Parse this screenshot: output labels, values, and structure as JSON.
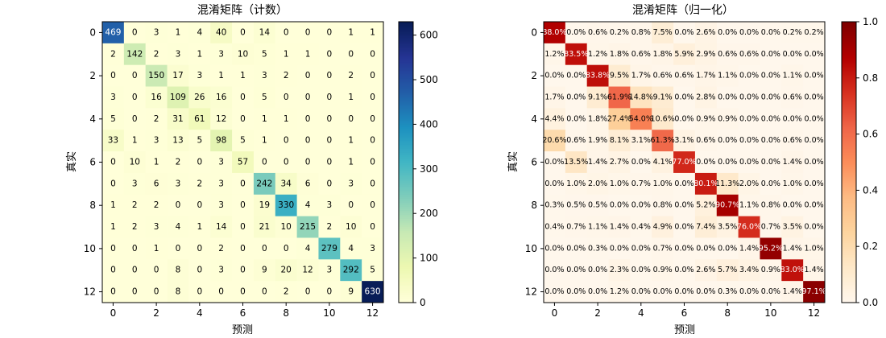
{
  "chart_data": [
    {
      "type": "heatmap",
      "title": "混淆矩阵（计数）",
      "xlabel": "预测",
      "ylabel": "真实",
      "labels": [
        0,
        1,
        2,
        3,
        4,
        5,
        6,
        7,
        8,
        9,
        10,
        11,
        12
      ],
      "tick_labels": [
        "0",
        "2",
        "4",
        "6",
        "8",
        "10",
        "12"
      ],
      "colormap": "YlGnBu",
      "vmin": 0,
      "vmax": 630,
      "colorbar_ticks": [
        "0",
        "100",
        "200",
        "300",
        "400",
        "500",
        "600"
      ],
      "matrix": [
        [
          469,
          0,
          3,
          1,
          4,
          40,
          0,
          14,
          0,
          0,
          0,
          1,
          1
        ],
        [
          2,
          142,
          2,
          3,
          1,
          3,
          10,
          5,
          1,
          1,
          0,
          0,
          0
        ],
        [
          0,
          0,
          150,
          17,
          3,
          1,
          1,
          3,
          2,
          0,
          0,
          2,
          0
        ],
        [
          3,
          0,
          16,
          109,
          26,
          16,
          0,
          5,
          0,
          0,
          0,
          1,
          0
        ],
        [
          5,
          0,
          2,
          31,
          61,
          12,
          0,
          1,
          1,
          0,
          0,
          0,
          0
        ],
        [
          33,
          1,
          3,
          13,
          5,
          98,
          5,
          1,
          0,
          0,
          0,
          1,
          0
        ],
        [
          0,
          10,
          1,
          2,
          0,
          3,
          57,
          0,
          0,
          0,
          0,
          1,
          0
        ],
        [
          0,
          3,
          6,
          3,
          2,
          3,
          0,
          242,
          34,
          6,
          0,
          3,
          0
        ],
        [
          1,
          2,
          2,
          0,
          0,
          3,
          0,
          19,
          330,
          4,
          3,
          0,
          0
        ],
        [
          1,
          2,
          3,
          4,
          1,
          14,
          0,
          21,
          10,
          215,
          2,
          10,
          0
        ],
        [
          0,
          0,
          1,
          0,
          0,
          2,
          0,
          0,
          0,
          4,
          279,
          4,
          3
        ],
        [
          0,
          0,
          0,
          8,
          0,
          3,
          0,
          9,
          20,
          12,
          3,
          292,
          5
        ],
        [
          0,
          0,
          0,
          8,
          0,
          0,
          0,
          0,
          2,
          0,
          0,
          9,
          630
        ]
      ],
      "cell_labels": [
        [
          "469",
          "0",
          "3",
          "1",
          "4",
          "40",
          "0",
          "14",
          "0",
          "0",
          "0",
          "1",
          "1"
        ],
        [
          "2",
          "142",
          "2",
          "3",
          "1",
          "3",
          "10",
          "5",
          "1",
          "1",
          "0",
          "0",
          "0"
        ],
        [
          "0",
          "0",
          "150",
          "17",
          "3",
          "1",
          "1",
          "3",
          "2",
          "0",
          "0",
          "2",
          "0"
        ],
        [
          "3",
          "0",
          "16",
          "109",
          "26",
          "16",
          "0",
          "5",
          "0",
          "0",
          "0",
          "1",
          "0"
        ],
        [
          "5",
          "0",
          "2",
          "31",
          "61",
          "12",
          "0",
          "1",
          "1",
          "0",
          "0",
          "0",
          "0"
        ],
        [
          "33",
          "1",
          "3",
          "13",
          "5",
          "98",
          "5",
          "1",
          "0",
          "0",
          "0",
          "1",
          "0"
        ],
        [
          "0",
          "10",
          "1",
          "2",
          "0",
          "3",
          "57",
          "0",
          "0",
          "0",
          "0",
          "1",
          "0"
        ],
        [
          "0",
          "3",
          "6",
          "3",
          "2",
          "3",
          "0",
          "242",
          "34",
          "6",
          "0",
          "3",
          "0"
        ],
        [
          "1",
          "2",
          "2",
          "0",
          "0",
          "3",
          "0",
          "19",
          "330",
          "4",
          "3",
          "0",
          "0"
        ],
        [
          "1",
          "2",
          "3",
          "4",
          "1",
          "14",
          "0",
          "21",
          "10",
          "215",
          "2",
          "10",
          "0"
        ],
        [
          "0",
          "0",
          "1",
          "0",
          "0",
          "2",
          "0",
          "0",
          "0",
          "4",
          "279",
          "4",
          "3"
        ],
        [
          "0",
          "0",
          "0",
          "8",
          "0",
          "3",
          "0",
          "9",
          "20",
          "12",
          "3",
          "292",
          "5"
        ],
        [
          "0",
          "0",
          "0",
          "8",
          "0",
          "0",
          "0",
          "0",
          "2",
          "0",
          "0",
          "9",
          "630"
        ]
      ]
    },
    {
      "type": "heatmap",
      "title": "混淆矩阵（归一化）",
      "xlabel": "预测",
      "ylabel": "真实",
      "labels": [
        0,
        1,
        2,
        3,
        4,
        5,
        6,
        7,
        8,
        9,
        10,
        11,
        12
      ],
      "tick_labels": [
        "0",
        "2",
        "4",
        "6",
        "8",
        "10",
        "12"
      ],
      "colormap": "OrRd",
      "vmin": 0,
      "vmax": 1,
      "colorbar_ticks": [
        "0.0",
        "0.2",
        "0.4",
        "0.6",
        "0.8",
        "1.0"
      ],
      "matrix": [
        [
          0.88,
          0.0,
          0.006,
          0.002,
          0.008,
          0.075,
          0.0,
          0.026,
          0.0,
          0.0,
          0.0,
          0.002,
          0.002
        ],
        [
          0.012,
          0.835,
          0.012,
          0.018,
          0.006,
          0.018,
          0.059,
          0.029,
          0.006,
          0.006,
          0.0,
          0.0,
          0.0
        ],
        [
          0.0,
          0.0,
          0.838,
          0.095,
          0.017,
          0.006,
          0.006,
          0.017,
          0.011,
          0.0,
          0.0,
          0.011,
          0.0
        ],
        [
          0.017,
          0.0,
          0.091,
          0.619,
          0.148,
          0.091,
          0.0,
          0.028,
          0.0,
          0.0,
          0.0,
          0.006,
          0.0
        ],
        [
          0.044,
          0.0,
          0.018,
          0.274,
          0.54,
          0.106,
          0.0,
          0.009,
          0.009,
          0.0,
          0.0,
          0.0,
          0.0
        ],
        [
          0.206,
          0.006,
          0.019,
          0.081,
          0.031,
          0.613,
          0.031,
          0.006,
          0.0,
          0.0,
          0.0,
          0.006,
          0.0
        ],
        [
          0.0,
          0.135,
          0.014,
          0.027,
          0.0,
          0.041,
          0.77,
          0.0,
          0.0,
          0.0,
          0.0,
          0.014,
          0.0
        ],
        [
          0.0,
          0.01,
          0.02,
          0.01,
          0.007,
          0.01,
          0.0,
          0.801,
          0.113,
          0.02,
          0.0,
          0.01,
          0.0
        ],
        [
          0.003,
          0.005,
          0.005,
          0.0,
          0.0,
          0.008,
          0.0,
          0.052,
          0.907,
          0.011,
          0.008,
          0.0,
          0.0
        ],
        [
          0.004,
          0.007,
          0.011,
          0.014,
          0.004,
          0.049,
          0.0,
          0.074,
          0.035,
          0.76,
          0.007,
          0.035,
          0.0
        ],
        [
          0.0,
          0.0,
          0.003,
          0.0,
          0.0,
          0.007,
          0.0,
          0.0,
          0.0,
          0.014,
          0.952,
          0.014,
          0.01
        ],
        [
          0.0,
          0.0,
          0.0,
          0.023,
          0.0,
          0.009,
          0.0,
          0.026,
          0.057,
          0.034,
          0.009,
          0.83,
          0.014
        ],
        [
          0.0,
          0.0,
          0.0,
          0.012,
          0.0,
          0.0,
          0.0,
          0.0,
          0.003,
          0.0,
          0.0,
          0.014,
          0.971
        ]
      ],
      "cell_labels": [
        [
          "88.0%",
          "0.0%",
          "0.6%",
          "0.2%",
          "0.8%",
          "7.5%",
          "0.0%",
          "2.6%",
          "0.0%",
          "0.0%",
          "0.0%",
          "0.2%",
          "0.2%"
        ],
        [
          "1.2%",
          "83.5%",
          "1.2%",
          "1.8%",
          "0.6%",
          "1.8%",
          "5.9%",
          "2.9%",
          "0.6%",
          "0.6%",
          "0.0%",
          "0.0%",
          "0.0%"
        ],
        [
          "0.0%",
          "0.0%",
          "83.8%",
          "9.5%",
          "1.7%",
          "0.6%",
          "0.6%",
          "1.7%",
          "1.1%",
          "0.0%",
          "0.0%",
          "1.1%",
          "0.0%"
        ],
        [
          "1.7%",
          "0.0%",
          "9.1%",
          "61.9%",
          "14.8%",
          "9.1%",
          "0.0%",
          "2.8%",
          "0.0%",
          "0.0%",
          "0.0%",
          "0.6%",
          "0.0%"
        ],
        [
          "4.4%",
          "0.0%",
          "1.8%",
          "27.4%",
          "54.0%",
          "10.6%",
          "0.0%",
          "0.9%",
          "0.9%",
          "0.0%",
          "0.0%",
          "0.0%",
          "0.0%"
        ],
        [
          "20.6%",
          "0.6%",
          "1.9%",
          "8.1%",
          "3.1%",
          "61.3%",
          "3.1%",
          "0.6%",
          "0.0%",
          "0.0%",
          "0.0%",
          "0.6%",
          "0.0%"
        ],
        [
          "0.0%",
          "13.5%",
          "1.4%",
          "2.7%",
          "0.0%",
          "4.1%",
          "77.0%",
          "0.0%",
          "0.0%",
          "0.0%",
          "0.0%",
          "1.4%",
          "0.0%"
        ],
        [
          "0.0%",
          "1.0%",
          "2.0%",
          "1.0%",
          "0.7%",
          "1.0%",
          "0.0%",
          "80.1%",
          "11.3%",
          "2.0%",
          "0.0%",
          "1.0%",
          "0.0%"
        ],
        [
          "0.3%",
          "0.5%",
          "0.5%",
          "0.0%",
          "0.0%",
          "0.8%",
          "0.0%",
          "5.2%",
          "90.7%",
          "1.1%",
          "0.8%",
          "0.0%",
          "0.0%"
        ],
        [
          "0.4%",
          "0.7%",
          "1.1%",
          "1.4%",
          "0.4%",
          "4.9%",
          "0.0%",
          "7.4%",
          "3.5%",
          "76.0%",
          "0.7%",
          "3.5%",
          "0.0%"
        ],
        [
          "0.0%",
          "0.0%",
          "0.3%",
          "0.0%",
          "0.0%",
          "0.7%",
          "0.0%",
          "0.0%",
          "0.0%",
          "1.4%",
          "95.2%",
          "1.4%",
          "1.0%"
        ],
        [
          "0.0%",
          "0.0%",
          "0.0%",
          "2.3%",
          "0.0%",
          "0.9%",
          "0.0%",
          "2.6%",
          "5.7%",
          "3.4%",
          "0.9%",
          "83.0%",
          "1.4%"
        ],
        [
          "0.0%",
          "0.0%",
          "0.0%",
          "1.2%",
          "0.0%",
          "0.0%",
          "0.0%",
          "0.0%",
          "0.3%",
          "0.0%",
          "0.0%",
          "1.4%",
          "97.1%"
        ]
      ]
    }
  ]
}
